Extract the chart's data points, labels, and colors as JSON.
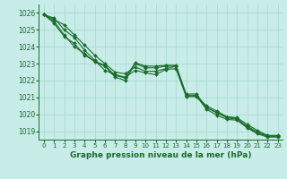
{
  "title": "Graphe pression niveau de la mer (hPa)",
  "bg_color": "#c8ece8",
  "grid_color": "#a8d8d0",
  "line_color": "#1a6b2a",
  "xlim": [
    -0.5,
    23.5
  ],
  "ylim": [
    1018.5,
    1026.5
  ],
  "yticks": [
    1019,
    1020,
    1021,
    1022,
    1023,
    1024,
    1025,
    1026
  ],
  "xticks": [
    0,
    1,
    2,
    3,
    4,
    5,
    6,
    7,
    8,
    9,
    10,
    11,
    12,
    13,
    14,
    15,
    16,
    17,
    18,
    19,
    20,
    21,
    22,
    23
  ],
  "series1": [
    1025.9,
    1025.6,
    1025.3,
    1024.7,
    1024.1,
    1023.5,
    1023.0,
    1022.5,
    1022.4,
    1022.8,
    1022.55,
    1022.55,
    1022.7,
    1022.85,
    1021.1,
    1021.1,
    1020.5,
    1020.2,
    1019.85,
    1019.8,
    1019.4,
    1019.05,
    1018.75,
    1018.75
  ],
  "series2": [
    1025.9,
    1025.7,
    1025.0,
    1024.55,
    1023.8,
    1023.2,
    1022.6,
    1022.35,
    1022.2,
    1022.6,
    1022.45,
    1022.35,
    1022.65,
    1022.7,
    1021.05,
    1021.05,
    1020.4,
    1020.1,
    1019.85,
    1019.75,
    1019.25,
    1018.9,
    1018.7,
    1018.7
  ],
  "series3": [
    1025.9,
    1025.4,
    1024.6,
    1024.2,
    1023.5,
    1023.15,
    1022.9,
    1022.3,
    1022.15,
    1023.05,
    1022.85,
    1022.85,
    1022.9,
    1022.9,
    1021.2,
    1021.2,
    1020.4,
    1020.1,
    1019.8,
    1019.7,
    1019.3,
    1018.95,
    1018.72,
    1018.72
  ],
  "series4": [
    1025.9,
    1025.5,
    1024.7,
    1024.0,
    1023.6,
    1023.1,
    1022.85,
    1022.2,
    1022.0,
    1023.0,
    1022.75,
    1022.75,
    1022.85,
    1022.85,
    1021.1,
    1021.1,
    1020.3,
    1019.95,
    1019.7,
    1019.65,
    1019.2,
    1018.85,
    1018.65,
    1018.65
  ],
  "line_width": 0.8,
  "markersize": 2.0,
  "font_color": "#1a6b2a",
  "tick_fontsize": 5.5,
  "xlabel_fontsize": 6.5
}
